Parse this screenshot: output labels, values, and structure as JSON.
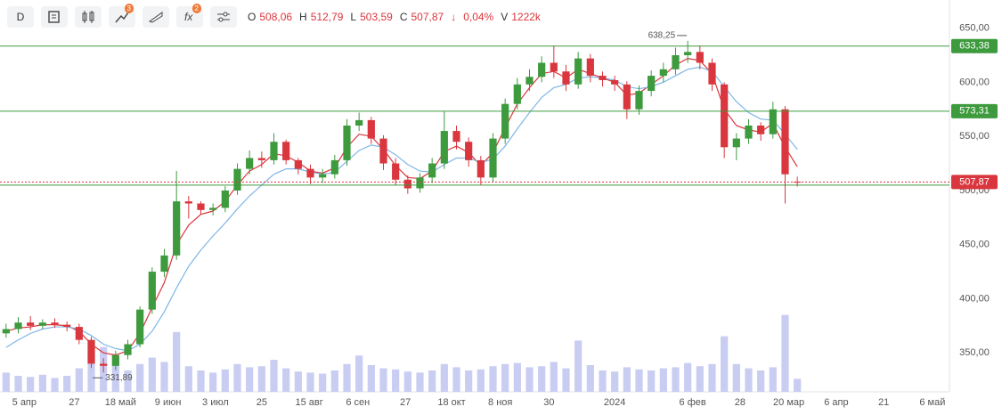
{
  "toolbar": {
    "interval": "D",
    "badges": [
      "3",
      "2"
    ],
    "quote": [
      {
        "label": "O",
        "value": "508,06"
      },
      {
        "label": "H",
        "value": "512,79"
      },
      {
        "label": "L",
        "value": "503,59"
      },
      {
        "label": "C",
        "value": "507,87"
      }
    ],
    "change": "0,04%",
    "volume_label": "V",
    "volume": "1222k"
  },
  "chart_data": {
    "type": "candlestick",
    "open": [
      368,
      372,
      378,
      375,
      378,
      376,
      374,
      362,
      340,
      338,
      348,
      358,
      390,
      425,
      440,
      490,
      488,
      482,
      484,
      500,
      520,
      530,
      528,
      545,
      528,
      520,
      512,
      515,
      528,
      560,
      565,
      548,
      525,
      510,
      502,
      512,
      525,
      555,
      545,
      528,
      512,
      548,
      580,
      598,
      605,
      618,
      610,
      598,
      622,
      606,
      602,
      598,
      575,
      592,
      606,
      612,
      625,
      628,
      618,
      598,
      540,
      548,
      560,
      552,
      575,
      508.06
    ],
    "high": [
      377,
      383,
      384,
      381,
      382,
      379,
      377,
      365,
      345,
      352,
      362,
      393,
      429,
      446,
      518,
      495,
      490,
      488,
      504,
      525,
      537,
      536,
      553,
      547,
      530,
      524,
      520,
      533,
      566,
      572,
      568,
      551,
      530,
      514,
      516,
      530,
      573,
      560,
      549,
      532,
      553,
      585,
      604,
      612,
      624,
      634,
      616,
      628,
      626,
      610,
      606,
      601,
      597,
      611,
      618,
      632,
      638.25,
      634,
      622,
      600,
      553,
      566,
      563,
      582,
      578,
      512.79
    ],
    "low": [
      364,
      368,
      371,
      372,
      373,
      370,
      358,
      336,
      331.89,
      334,
      344,
      355,
      386,
      420,
      436,
      474,
      478,
      477,
      480,
      496,
      515,
      521,
      524,
      524,
      515,
      506,
      507,
      511,
      523,
      555,
      543,
      519,
      505,
      497,
      498,
      507,
      520,
      538,
      522,
      505,
      508,
      543,
      575,
      592,
      600,
      604,
      592,
      594,
      600,
      596,
      592,
      566,
      570,
      587,
      600,
      607,
      618,
      612,
      592,
      530,
      528,
      543,
      546,
      548,
      488,
      503.59
    ],
    "close": [
      372,
      378,
      375,
      378,
      376,
      374,
      362,
      340,
      338,
      348,
      358,
      390,
      425,
      440,
      490,
      488,
      482,
      484,
      500,
      520,
      530,
      528,
      545,
      528,
      520,
      512,
      515,
      528,
      560,
      565,
      548,
      525,
      510,
      502,
      512,
      525,
      555,
      545,
      528,
      512,
      548,
      580,
      598,
      605,
      618,
      610,
      598,
      622,
      606,
      602,
      598,
      575,
      592,
      606,
      612,
      625,
      628,
      618,
      598,
      540,
      548,
      560,
      552,
      575,
      515,
      507.87
    ],
    "volume": [
      1800,
      1500,
      1400,
      1600,
      1300,
      1500,
      2200,
      3800,
      4200,
      2500,
      2000,
      2600,
      3200,
      2800,
      5600,
      2400,
      2000,
      1800,
      2100,
      2600,
      2300,
      2400,
      3000,
      2200,
      1900,
      1800,
      1700,
      2000,
      2600,
      3400,
      2500,
      2200,
      2100,
      1900,
      1800,
      2000,
      2600,
      2300,
      2000,
      2100,
      2400,
      2600,
      2700,
      2300,
      2400,
      2800,
      2200,
      4800,
      2500,
      2000,
      1900,
      2300,
      2100,
      2000,
      2200,
      2300,
      2700,
      2400,
      2600,
      5200,
      2600,
      2200,
      2000,
      2300,
      7200,
      1222
    ],
    "up_color": "#3d9a3d",
    "down_color": "#d9363e",
    "volume_color": "#c9cdf2",
    "series": [
      {
        "color": "#d9363e",
        "values": [
          370,
          373,
          374,
          376,
          376,
          375,
          370,
          358,
          350,
          348,
          352,
          368,
          392,
          415,
          450,
          468,
          478,
          481,
          490,
          505,
          518,
          524,
          534,
          532,
          526,
          518,
          516,
          521,
          540,
          552,
          550,
          538,
          523,
          512,
          511,
          518,
          536,
          541,
          535,
          523,
          535,
          558,
          580,
          595,
          608,
          610,
          604,
          612,
          608,
          604,
          600,
          588,
          590,
          598,
          606,
          616,
          622,
          620,
          608,
          575,
          560,
          556,
          554,
          562,
          540,
          522
        ]
      },
      {
        "color": "#7fb6e6",
        "values": [
          355,
          362,
          368,
          372,
          374,
          374,
          372,
          366,
          358,
          354,
          352,
          358,
          370,
          388,
          410,
          430,
          445,
          458,
          470,
          483,
          495,
          505,
          515,
          520,
          520,
          517,
          515,
          517,
          527,
          537,
          542,
          540,
          533,
          524,
          518,
          517,
          524,
          530,
          530,
          526,
          529,
          541,
          557,
          572,
          586,
          595,
          598,
          604,
          605,
          604,
          602,
          596,
          594,
          596,
          600,
          606,
          612,
          614,
          610,
          596,
          582,
          572,
          566,
          565,
          552,
          538
        ]
      }
    ],
    "ylim": [
      314,
      676
    ],
    "yticks": [
      {
        "value": 350,
        "label": "350,00"
      },
      {
        "value": 400,
        "label": "400,00"
      },
      {
        "value": 450,
        "label": "450,00"
      },
      {
        "value": 500,
        "label": "500,00"
      },
      {
        "value": 550,
        "label": "550,00"
      },
      {
        "value": 600,
        "label": "600,00"
      },
      {
        "value": 650,
        "label": "650,00"
      }
    ],
    "volume_lim": [
      0,
      7500
    ],
    "xlim": [
      0,
      78
    ],
    "xticks": [
      {
        "value": 2,
        "label": "5 апр"
      },
      {
        "value": 6.1,
        "label": "27"
      },
      {
        "value": 9.9,
        "label": "18 май"
      },
      {
        "value": 13.8,
        "label": "9 июн"
      },
      {
        "value": 17.7,
        "label": "3 июл"
      },
      {
        "value": 21.5,
        "label": "25"
      },
      {
        "value": 25.4,
        "label": "15 авг"
      },
      {
        "value": 29.4,
        "label": "6 сен"
      },
      {
        "value": 33.3,
        "label": "27"
      },
      {
        "value": 37.1,
        "label": "18 окт"
      },
      {
        "value": 41.1,
        "label": "8 ноя"
      },
      {
        "value": 45.1,
        "label": "30"
      },
      {
        "value": 50.5,
        "label": "2024"
      },
      {
        "value": 56.9,
        "label": "6 фев"
      },
      {
        "value": 60.8,
        "label": "28"
      },
      {
        "value": 64.8,
        "label": "20 мар"
      },
      {
        "value": 68.7,
        "label": "6 апр"
      },
      {
        "value": 72.6,
        "label": "21"
      },
      {
        "value": 76.6,
        "label": "6 май"
      }
    ],
    "levels": [
      {
        "value": 633.38,
        "label": "633,38",
        "color": "#3d9a3d"
      },
      {
        "value": 573.31,
        "label": "573,31",
        "color": "#3d9a3d"
      },
      {
        "value": 505
      },
      {
        "value": 507.87,
        "label": "507,87",
        "color": "#d9363e",
        "dotted": true
      }
    ],
    "annotations": [
      {
        "index": 56,
        "value": 638.25,
        "label": "638,25"
      },
      {
        "index": 8,
        "value": 331.89,
        "label": "331,89"
      }
    ]
  }
}
